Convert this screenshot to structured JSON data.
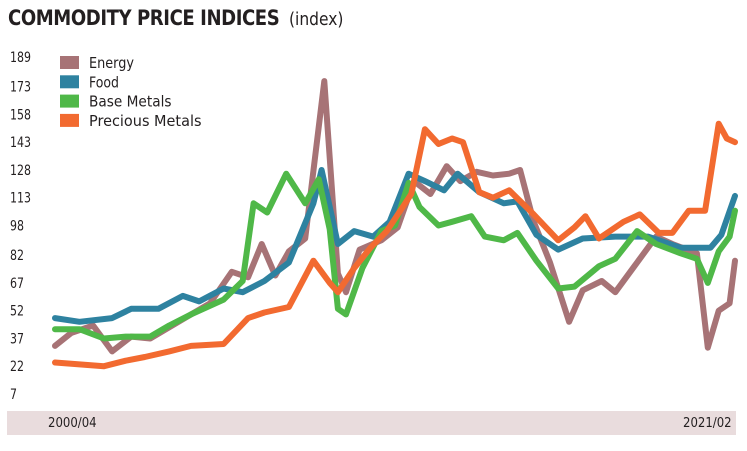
{
  "title": "COMMODITY PRICE INDICES",
  "title_unit": "(index)",
  "chart_data": {
    "type": "line",
    "x_start": "2000/04",
    "x_end": "2021/02",
    "x_tick_labels": [
      "2000/04",
      "2021/02"
    ],
    "yticks": [
      189,
      173,
      158,
      143,
      128,
      113,
      98,
      82,
      67,
      52,
      37,
      22,
      7
    ],
    "ylim": [
      7,
      189
    ],
    "grid": false,
    "legend_position": "top-left",
    "series": [
      {
        "name": "Energy",
        "color": "#a77376",
        "points": [
          [
            "2000/04",
            33
          ],
          [
            "2000/10",
            40
          ],
          [
            "2001/06",
            44
          ],
          [
            "2002/01",
            30
          ],
          [
            "2002/08",
            38
          ],
          [
            "2003/03",
            37
          ],
          [
            "2003/10",
            43
          ],
          [
            "2004/06",
            50
          ],
          [
            "2005/01",
            56
          ],
          [
            "2005/09",
            73
          ],
          [
            "2006/03",
            70
          ],
          [
            "2006/08",
            88
          ],
          [
            "2007/01",
            71
          ],
          [
            "2007/06",
            84
          ],
          [
            "2007/12",
            91
          ],
          [
            "2008/07",
            176
          ],
          [
            "2008/12",
            72
          ],
          [
            "2009/03",
            62
          ],
          [
            "2009/08",
            85
          ],
          [
            "2010/04",
            90
          ],
          [
            "2010/10",
            97
          ],
          [
            "2011/04",
            122
          ],
          [
            "2011/10",
            115
          ],
          [
            "2012/04",
            130
          ],
          [
            "2012/09",
            122
          ],
          [
            "2013/03",
            127
          ],
          [
            "2013/09",
            125
          ],
          [
            "2014/03",
            126
          ],
          [
            "2014/07",
            128
          ],
          [
            "2014/12",
            100
          ],
          [
            "2015/06",
            78
          ],
          [
            "2016/01",
            46
          ],
          [
            "2016/06",
            63
          ],
          [
            "2017/01",
            68
          ],
          [
            "2017/06",
            62
          ],
          [
            "2018/01",
            76
          ],
          [
            "2018/09",
            92
          ],
          [
            "2019/03",
            88
          ],
          [
            "2019/12",
            83
          ],
          [
            "2020/04",
            32
          ],
          [
            "2020/08",
            52
          ],
          [
            "2020/12",
            56
          ],
          [
            "2021/02",
            79
          ]
        ]
      },
      {
        "name": "Food",
        "color": "#2e82a0",
        "points": [
          [
            "2000/04",
            48
          ],
          [
            "2001/01",
            46
          ],
          [
            "2002/01",
            48
          ],
          [
            "2002/08",
            53
          ],
          [
            "2003/06",
            53
          ],
          [
            "2004/03",
            60
          ],
          [
            "2004/09",
            57
          ],
          [
            "2005/06",
            64
          ],
          [
            "2006/01",
            62
          ],
          [
            "2006/09",
            68
          ],
          [
            "2007/06",
            78
          ],
          [
            "2008/03",
            110
          ],
          [
            "2008/06",
            128
          ],
          [
            "2008/12",
            88
          ],
          [
            "2009/06",
            95
          ],
          [
            "2010/01",
            92
          ],
          [
            "2010/07",
            100
          ],
          [
            "2011/02",
            126
          ],
          [
            "2011/08",
            122
          ],
          [
            "2012/03",
            117
          ],
          [
            "2012/08",
            126
          ],
          [
            "2013/04",
            116
          ],
          [
            "2014/01",
            110
          ],
          [
            "2014/06",
            111
          ],
          [
            "2015/01",
            93
          ],
          [
            "2015/09",
            85
          ],
          [
            "2016/06",
            91
          ],
          [
            "2017/06",
            92
          ],
          [
            "2018/06",
            92
          ],
          [
            "2019/06",
            86
          ],
          [
            "2020/05",
            86
          ],
          [
            "2020/09",
            93
          ],
          [
            "2021/02",
            114
          ]
        ]
      },
      {
        "name": "Base Metals",
        "color": "#4fb848",
        "points": [
          [
            "2000/04",
            42
          ],
          [
            "2001/01",
            42
          ],
          [
            "2001/10",
            37
          ],
          [
            "2002/06",
            38
          ],
          [
            "2003/03",
            38
          ],
          [
            "2003/10",
            44
          ],
          [
            "2004/06",
            50
          ],
          [
            "2005/06",
            58
          ],
          [
            "2006/01",
            68
          ],
          [
            "2006/05",
            110
          ],
          [
            "2006/10",
            105
          ],
          [
            "2007/05",
            126
          ],
          [
            "2007/12",
            110
          ],
          [
            "2008/05",
            123
          ],
          [
            "2008/09",
            96
          ],
          [
            "2008/12",
            53
          ],
          [
            "2009/03",
            50
          ],
          [
            "2009/09",
            75
          ],
          [
            "2010/04",
            95
          ],
          [
            "2010/09",
            98
          ],
          [
            "2011/02",
            121
          ],
          [
            "2011/06",
            108
          ],
          [
            "2012/01",
            98
          ],
          [
            "2012/06",
            100
          ],
          [
            "2013/01",
            103
          ],
          [
            "2013/06",
            92
          ],
          [
            "2014/01",
            90
          ],
          [
            "2014/06",
            94
          ],
          [
            "2015/01",
            79
          ],
          [
            "2015/09",
            64
          ],
          [
            "2016/03",
            65
          ],
          [
            "2016/12",
            76
          ],
          [
            "2017/06",
            80
          ],
          [
            "2018/02",
            95
          ],
          [
            "2018/09",
            88
          ],
          [
            "2019/06",
            83
          ],
          [
            "2019/12",
            80
          ],
          [
            "2020/04",
            67
          ],
          [
            "2020/08",
            84
          ],
          [
            "2020/12",
            92
          ],
          [
            "2021/02",
            106
          ]
        ]
      },
      {
        "name": "Precious Metals",
        "color": "#f26a30",
        "points": [
          [
            "2000/04",
            24
          ],
          [
            "2001/01",
            23
          ],
          [
            "2001/10",
            22
          ],
          [
            "2002/06",
            25
          ],
          [
            "2003/01",
            27
          ],
          [
            "2003/10",
            30
          ],
          [
            "2004/06",
            33
          ],
          [
            "2005/06",
            34
          ],
          [
            "2006/03",
            48
          ],
          [
            "2006/09",
            51
          ],
          [
            "2007/06",
            54
          ],
          [
            "2008/03",
            79
          ],
          [
            "2008/09",
            67
          ],
          [
            "2008/12",
            62
          ],
          [
            "2009/06",
            75
          ],
          [
            "2009/12",
            86
          ],
          [
            "2010/06",
            95
          ],
          [
            "2011/03",
            115
          ],
          [
            "2011/08",
            150
          ],
          [
            "2012/01",
            142
          ],
          [
            "2012/06",
            145
          ],
          [
            "2012/10",
            143
          ],
          [
            "2013/04",
            116
          ],
          [
            "2013/09",
            113
          ],
          [
            "2014/03",
            117
          ],
          [
            "2014/12",
            104
          ],
          [
            "2015/09",
            90
          ],
          [
            "2016/03",
            97
          ],
          [
            "2016/07",
            103
          ],
          [
            "2016/12",
            91
          ],
          [
            "2017/09",
            100
          ],
          [
            "2018/03",
            104
          ],
          [
            "2018/10",
            94
          ],
          [
            "2019/03",
            94
          ],
          [
            "2019/09",
            106
          ],
          [
            "2020/03",
            106
          ],
          [
            "2020/08",
            153
          ],
          [
            "2020/11",
            145
          ],
          [
            "2021/02",
            143
          ]
        ]
      }
    ]
  }
}
